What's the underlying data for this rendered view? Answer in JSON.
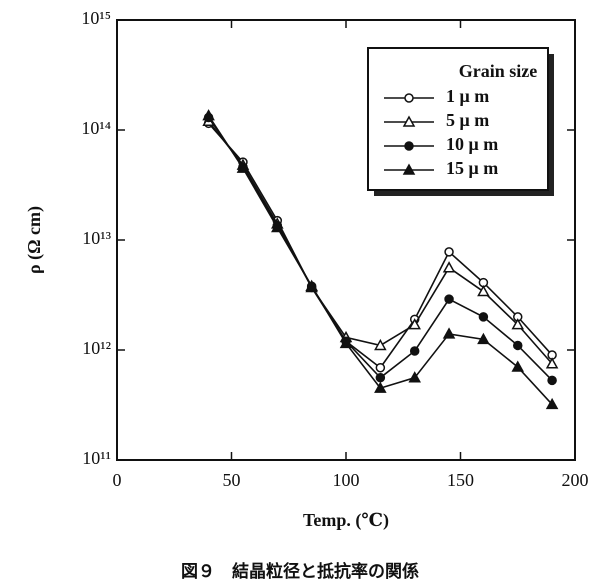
{
  "chart_data": {
    "type": "line",
    "x_label": "Temp. (℃)",
    "y_label": "ρ (Ω cm)",
    "caption": "図９　結晶粒径と抵抗率の関係",
    "legend_title": "Grain size",
    "legend": "upper right",
    "x": [
      40,
      55,
      70,
      85,
      100,
      115,
      130,
      145,
      160,
      175,
      190
    ],
    "series": [
      {
        "name": "1 μ m",
        "color": "#111111",
        "marker": "open-circle",
        "values": [
          115000000000000,
          51000000000000,
          15000000000000,
          3700000000000,
          1200000000000,
          690000000000,
          1900000000000,
          7800000000000,
          4100000000000,
          2000000000000,
          900000000000
        ]
      },
      {
        "name": "5 μ m",
        "color": "#111111",
        "marker": "open-triangle",
        "values": [
          120000000000000,
          48000000000000,
          14000000000000,
          3700000000000,
          1300000000000,
          1100000000000,
          1700000000000,
          5600000000000,
          3400000000000,
          1700000000000,
          750000000000
        ]
      },
      {
        "name": "10 μ m",
        "color": "#111111",
        "marker": "circle",
        "values": [
          130000000000000,
          46000000000000,
          13500000000000,
          3800000000000,
          1200000000000,
          560000000000,
          980000000000,
          2900000000000,
          2000000000000,
          1100000000000,
          530000000000
        ]
      },
      {
        "name": "15 μ m",
        "color": "#111111",
        "marker": "triangle",
        "values": [
          135000000000000,
          45000000000000,
          13000000000000,
          3800000000000,
          1150000000000,
          450000000000,
          560000000000,
          1400000000000,
          1250000000000,
          700000000000,
          320000000000
        ]
      }
    ],
    "xlim": [
      0,
      200
    ],
    "xticks": [
      0,
      50,
      100,
      150,
      200
    ],
    "ylog": true,
    "ylim": [
      100000000000,
      1000000000000000
    ],
    "yticks": [
      {
        "value": 100000000000,
        "label": "10¹¹"
      },
      {
        "value": 1000000000000,
        "label": "10¹²"
      },
      {
        "value": 10000000000000,
        "label": "10¹³"
      },
      {
        "value": 100000000000000,
        "label": "10¹⁴"
      },
      {
        "value": 1000000000000000,
        "label": "10¹⁵"
      }
    ]
  }
}
